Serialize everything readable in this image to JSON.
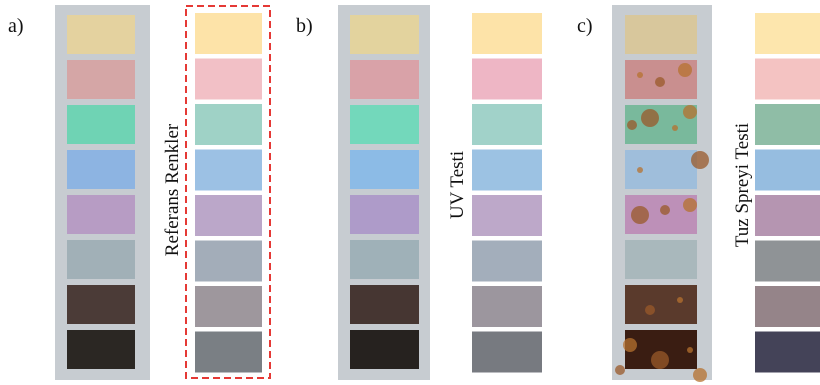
{
  "panels": [
    {
      "label": "a)",
      "caption": "Referans Renkler"
    },
    {
      "label": "b)",
      "caption": "UV Testi"
    },
    {
      "label": "c)",
      "caption": "Tuz Spreyi Testi"
    }
  ]
}
